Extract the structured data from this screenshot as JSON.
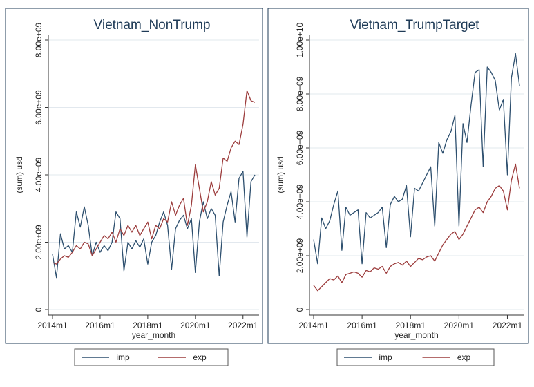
{
  "colors": {
    "imp": "#2d4f6e",
    "exp": "#9c3c3c",
    "grid": "#e2e8ee",
    "axis": "#333333",
    "frame": "#1f3b57",
    "legend_border": "#555555"
  },
  "chart_data": [
    {
      "type": "line",
      "title": "Vietnam_NonTrump",
      "xlabel": "year_month",
      "ylabel": "(sum) usd",
      "xlim": [
        "2014m1",
        "2022m7"
      ],
      "xticks": [
        "2014m1",
        "2016m1",
        "2018m1",
        "2020m1",
        "2022m1"
      ],
      "ylim": [
        0,
        8000000000
      ],
      "yticks": [
        0,
        2000000000,
        4000000000,
        6000000000,
        8000000000
      ],
      "ytick_labels": [
        "0",
        "2.00e+09",
        "4.00e+09",
        "6.00e+09",
        "8.00e+09"
      ],
      "grid": true,
      "legend": "bottom",
      "series": [
        {
          "name": "imp",
          "x": [
            "2014m1",
            "2014m3",
            "2014m5",
            "2014m7",
            "2014m9",
            "2014m11",
            "2015m1",
            "2015m3",
            "2015m5",
            "2015m7",
            "2015m9",
            "2015m11",
            "2016m1",
            "2016m3",
            "2016m5",
            "2016m7",
            "2016m9",
            "2016m11",
            "2017m1",
            "2017m3",
            "2017m5",
            "2017m7",
            "2017m9",
            "2017m11",
            "2018m1",
            "2018m3",
            "2018m5",
            "2018m7",
            "2018m9",
            "2018m11",
            "2019m1",
            "2019m3",
            "2019m5",
            "2019m7",
            "2019m9",
            "2019m11",
            "2020m1",
            "2020m3",
            "2020m5",
            "2020m7",
            "2020m9",
            "2020m11",
            "2021m1",
            "2021m3",
            "2021m5",
            "2021m7",
            "2021m9",
            "2021m11",
            "2022m1",
            "2022m3",
            "2022m5",
            "2022m7"
          ],
          "y": [
            1650000000,
            950000000,
            2250000000,
            1800000000,
            1900000000,
            1700000000,
            2900000000,
            2450000000,
            3050000000,
            2500000000,
            1600000000,
            2000000000,
            1700000000,
            1900000000,
            1750000000,
            2000000000,
            2900000000,
            2700000000,
            1150000000,
            2000000000,
            1800000000,
            2050000000,
            1850000000,
            2100000000,
            1350000000,
            2000000000,
            2200000000,
            2600000000,
            2900000000,
            2500000000,
            1200000000,
            2400000000,
            2650000000,
            2800000000,
            2400000000,
            2700000000,
            1100000000,
            2600000000,
            3200000000,
            2700000000,
            3000000000,
            2800000000,
            1000000000,
            2600000000,
            3100000000,
            3500000000,
            2600000000,
            3900000000,
            4100000000,
            2150000000,
            3800000000,
            4000000000
          ]
        },
        {
          "name": "exp",
          "x": [
            "2014m1",
            "2014m3",
            "2014m5",
            "2014m7",
            "2014m9",
            "2014m11",
            "2015m1",
            "2015m3",
            "2015m5",
            "2015m7",
            "2015m9",
            "2015m11",
            "2016m1",
            "2016m3",
            "2016m5",
            "2016m7",
            "2016m9",
            "2016m11",
            "2017m1",
            "2017m3",
            "2017m5",
            "2017m7",
            "2017m9",
            "2017m11",
            "2018m1",
            "2018m3",
            "2018m5",
            "2018m7",
            "2018m9",
            "2018m11",
            "2019m1",
            "2019m3",
            "2019m5",
            "2019m7",
            "2019m9",
            "2019m11",
            "2020m1",
            "2020m3",
            "2020m5",
            "2020m7",
            "2020m9",
            "2020m11",
            "2021m1",
            "2021m3",
            "2021m5",
            "2021m7",
            "2021m9",
            "2021m11",
            "2022m1",
            "2022m3",
            "2022m5",
            "2022m7"
          ],
          "y": [
            1400000000,
            1350000000,
            1500000000,
            1600000000,
            1550000000,
            1700000000,
            1900000000,
            1800000000,
            2000000000,
            1950000000,
            1600000000,
            1800000000,
            2000000000,
            2200000000,
            2100000000,
            2300000000,
            2000000000,
            2400000000,
            2200000000,
            2500000000,
            2300000000,
            2500000000,
            2200000000,
            2400000000,
            2600000000,
            2100000000,
            2500000000,
            2400000000,
            2700000000,
            2600000000,
            3200000000,
            2800000000,
            3100000000,
            3300000000,
            2500000000,
            3100000000,
            4300000000,
            3600000000,
            2900000000,
            3200000000,
            3800000000,
            3400000000,
            3600000000,
            4500000000,
            4400000000,
            4800000000,
            5000000000,
            4900000000,
            5500000000,
            6500000000,
            6200000000,
            6150000000
          ]
        }
      ]
    },
    {
      "type": "line",
      "title": "Vietnam_TrumpTarget",
      "xlabel": "year_month",
      "ylabel": "(sum) usd",
      "xlim": [
        "2014m1",
        "2022m7"
      ],
      "xticks": [
        "2014m1",
        "2016m1",
        "2018m1",
        "2020m1",
        "2022m1"
      ],
      "ylim": [
        0,
        10000000000
      ],
      "yticks": [
        0,
        2000000000,
        4000000000,
        6000000000,
        8000000000,
        10000000000
      ],
      "ytick_labels": [
        "0",
        "2.00e+09",
        "4.00e+09",
        "6.00e+09",
        "8.00e+09",
        "1.00e+10"
      ],
      "grid": true,
      "legend": "bottom",
      "series": [
        {
          "name": "imp",
          "x": [
            "2014m1",
            "2014m3",
            "2014m5",
            "2014m7",
            "2014m9",
            "2014m11",
            "2015m1",
            "2015m3",
            "2015m5",
            "2015m7",
            "2015m9",
            "2015m11",
            "2016m1",
            "2016m3",
            "2016m5",
            "2016m7",
            "2016m9",
            "2016m11",
            "2017m1",
            "2017m3",
            "2017m5",
            "2017m7",
            "2017m9",
            "2017m11",
            "2018m1",
            "2018m3",
            "2018m5",
            "2018m7",
            "2018m9",
            "2018m11",
            "2019m1",
            "2019m3",
            "2019m5",
            "2019m7",
            "2019m9",
            "2019m11",
            "2020m1",
            "2020m3",
            "2020m5",
            "2020m7",
            "2020m9",
            "2020m11",
            "2021m1",
            "2021m3",
            "2021m5",
            "2021m7",
            "2021m9",
            "2021m11",
            "2022m1",
            "2022m3",
            "2022m5",
            "2022m7"
          ],
          "y": [
            2600000000,
            1700000000,
            3400000000,
            3000000000,
            3300000000,
            3900000000,
            4400000000,
            2200000000,
            3800000000,
            3500000000,
            3600000000,
            3700000000,
            1700000000,
            3600000000,
            3400000000,
            3500000000,
            3600000000,
            3800000000,
            2300000000,
            3900000000,
            4200000000,
            4000000000,
            4100000000,
            4600000000,
            2700000000,
            4500000000,
            4400000000,
            4700000000,
            5000000000,
            5300000000,
            3100000000,
            6200000000,
            5800000000,
            6300000000,
            6600000000,
            7200000000,
            3100000000,
            6900000000,
            6200000000,
            7600000000,
            8800000000,
            8900000000,
            5300000000,
            9000000000,
            8800000000,
            8500000000,
            7400000000,
            7800000000,
            5000000000,
            8600000000,
            9500000000,
            8300000000
          ]
        },
        {
          "name": "exp",
          "x": [
            "2014m1",
            "2014m3",
            "2014m5",
            "2014m7",
            "2014m9",
            "2014m11",
            "2015m1",
            "2015m3",
            "2015m5",
            "2015m7",
            "2015m9",
            "2015m11",
            "2016m1",
            "2016m3",
            "2016m5",
            "2016m7",
            "2016m9",
            "2016m11",
            "2017m1",
            "2017m3",
            "2017m5",
            "2017m7",
            "2017m9",
            "2017m11",
            "2018m1",
            "2018m3",
            "2018m5",
            "2018m7",
            "2018m9",
            "2018m11",
            "2019m1",
            "2019m3",
            "2019m5",
            "2019m7",
            "2019m9",
            "2019m11",
            "2020m1",
            "2020m3",
            "2020m5",
            "2020m7",
            "2020m9",
            "2020m11",
            "2021m1",
            "2021m3",
            "2021m5",
            "2021m7",
            "2021m9",
            "2021m11",
            "2022m1",
            "2022m3",
            "2022m5",
            "2022m7"
          ],
          "y": [
            900000000,
            700000000,
            850000000,
            1000000000,
            1150000000,
            1100000000,
            1250000000,
            1000000000,
            1300000000,
            1350000000,
            1400000000,
            1350000000,
            1200000000,
            1450000000,
            1400000000,
            1550000000,
            1500000000,
            1600000000,
            1350000000,
            1600000000,
            1700000000,
            1750000000,
            1650000000,
            1800000000,
            1600000000,
            1750000000,
            1900000000,
            1850000000,
            1950000000,
            2000000000,
            1800000000,
            2100000000,
            2400000000,
            2600000000,
            2800000000,
            2900000000,
            2600000000,
            2800000000,
            3100000000,
            3400000000,
            3700000000,
            3800000000,
            3600000000,
            4000000000,
            4200000000,
            4500000000,
            4600000000,
            4400000000,
            3700000000,
            4800000000,
            5400000000,
            4500000000
          ]
        }
      ]
    }
  ]
}
